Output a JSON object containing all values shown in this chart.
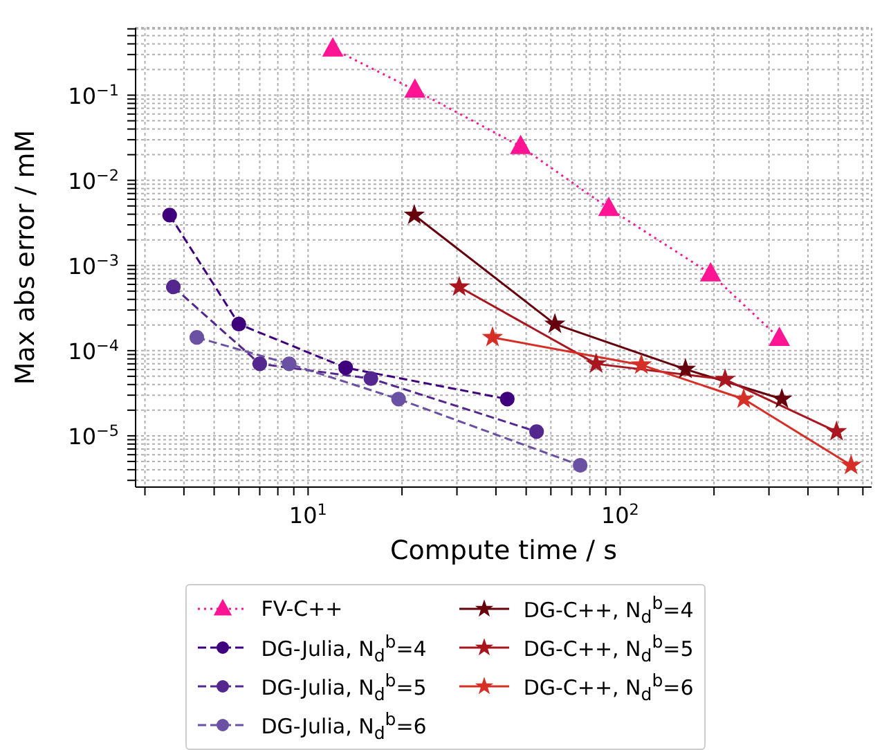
{
  "chart_data": {
    "type": "line",
    "xlabel": "Compute time / s",
    "ylabel": "Max abs error / mM",
    "log": "xy",
    "grid": true,
    "legend": "bottom",
    "xlim": [
      2.8,
      640
    ],
    "ylim": [
      2.5e-06,
      0.62
    ],
    "xticks": [
      {
        "value": 3,
        "label": null
      },
      {
        "value": 4,
        "label": null
      },
      {
        "value": 5,
        "label": null
      },
      {
        "value": 6,
        "label": null
      },
      {
        "value": 7,
        "label": null
      },
      {
        "value": 8,
        "label": null
      },
      {
        "value": 9,
        "label": null
      },
      {
        "value": 10,
        "label": "10$^{1}$"
      },
      {
        "value": 20,
        "label": null
      },
      {
        "value": 30,
        "label": null
      },
      {
        "value": 40,
        "label": null
      },
      {
        "value": 50,
        "label": null
      },
      {
        "value": 60,
        "label": null
      },
      {
        "value": 70,
        "label": null
      },
      {
        "value": 80,
        "label": null
      },
      {
        "value": 90,
        "label": null
      },
      {
        "value": 100,
        "label": "10$^{2}$"
      },
      {
        "value": 200,
        "label": null
      },
      {
        "value": 300,
        "label": null
      },
      {
        "value": 400,
        "label": null
      },
      {
        "value": 500,
        "label": null
      },
      {
        "value": 600,
        "label": null
      }
    ],
    "yticks": [
      {
        "value": 3e-06,
        "label": null
      },
      {
        "value": 4e-06,
        "label": null
      },
      {
        "value": 5e-06,
        "label": null
      },
      {
        "value": 6e-06,
        "label": null
      },
      {
        "value": 7e-06,
        "label": null
      },
      {
        "value": 8e-06,
        "label": null
      },
      {
        "value": 9e-06,
        "label": null
      },
      {
        "value": 1e-05,
        "label": "10$^{−5}$"
      },
      {
        "value": 2e-05,
        "label": null
      },
      {
        "value": 3e-05,
        "label": null
      },
      {
        "value": 4e-05,
        "label": null
      },
      {
        "value": 5e-05,
        "label": null
      },
      {
        "value": 6e-05,
        "label": null
      },
      {
        "value": 7e-05,
        "label": null
      },
      {
        "value": 8e-05,
        "label": null
      },
      {
        "value": 9e-05,
        "label": null
      },
      {
        "value": 0.0001,
        "label": "10$^{−4}$"
      },
      {
        "value": 0.0002,
        "label": null
      },
      {
        "value": 0.0003,
        "label": null
      },
      {
        "value": 0.0004,
        "label": null
      },
      {
        "value": 0.0005,
        "label": null
      },
      {
        "value": 0.0006,
        "label": null
      },
      {
        "value": 0.0007,
        "label": null
      },
      {
        "value": 0.0008,
        "label": null
      },
      {
        "value": 0.0009,
        "label": null
      },
      {
        "value": 0.001,
        "label": "10$^{−3}$"
      },
      {
        "value": 0.002,
        "label": null
      },
      {
        "value": 0.003,
        "label": null
      },
      {
        "value": 0.004,
        "label": null
      },
      {
        "value": 0.005,
        "label": null
      },
      {
        "value": 0.006,
        "label": null
      },
      {
        "value": 0.007,
        "label": null
      },
      {
        "value": 0.008,
        "label": null
      },
      {
        "value": 0.009,
        "label": null
      },
      {
        "value": 0.01,
        "label": "10$^{−2}$"
      },
      {
        "value": 0.02,
        "label": null
      },
      {
        "value": 0.03,
        "label": null
      },
      {
        "value": 0.04,
        "label": null
      },
      {
        "value": 0.05,
        "label": null
      },
      {
        "value": 0.06,
        "label": null
      },
      {
        "value": 0.07,
        "label": null
      },
      {
        "value": 0.08,
        "label": null
      },
      {
        "value": 0.09,
        "label": null
      },
      {
        "value": 0.1,
        "label": "10$^{−1}$"
      },
      {
        "value": 0.2,
        "label": null
      },
      {
        "value": 0.3,
        "label": null
      },
      {
        "value": 0.4,
        "label": null
      },
      {
        "value": 0.5,
        "label": null
      },
      {
        "value": 0.6,
        "label": null
      }
    ],
    "series": [
      {
        "name": "FV-C++",
        "color": "#ff1493",
        "marker": "triangle",
        "line_style": "dotted",
        "x": [
          12,
          22,
          48,
          92,
          195,
          324
        ],
        "values": [
          0.35,
          0.115,
          0.025,
          0.0047,
          0.0008,
          0.00014
        ]
      },
      {
        "name": "DG-Julia, N$_{d}$$^{b}$=4",
        "color": "#3f007d",
        "marker": "circle",
        "line_style": "dashed",
        "x": [
          3.6,
          6.0,
          13.2,
          43.5
        ],
        "values": [
          0.0039,
          0.000205,
          6.3e-05,
          2.7e-05
        ]
      },
      {
        "name": "DG-Julia, N$_{d}$$^{b}$=5",
        "color": "#54278f",
        "marker": "circle",
        "line_style": "dashed",
        "x": [
          3.7,
          7.0,
          15.9,
          54
        ],
        "values": [
          0.00056,
          7e-05,
          4.7e-05,
          1.12e-05
        ]
      },
      {
        "name": "DG-Julia, N$_{d}$$^{b}$=6",
        "color": "#6a51a3",
        "marker": "circle",
        "line_style": "dashed",
        "x": [
          4.4,
          8.7,
          19.5,
          74.5
        ],
        "values": [
          0.000143,
          7e-05,
          2.7e-05,
          4.5e-06
        ]
      },
      {
        "name": "DG-C++, N$_{d}$$^{b}$=4",
        "color": "#67000d",
        "marker": "star",
        "line_style": "solid",
        "x": [
          21.9,
          61.8,
          162,
          330
        ],
        "values": [
          0.0039,
          0.000205,
          6.05e-05,
          2.7e-05
        ]
      },
      {
        "name": "DG-C++, N$_{d}$$^{b}$=5",
        "color": "#a91620",
        "marker": "star",
        "line_style": "solid",
        "x": [
          30.5,
          83.8,
          217,
          494
        ],
        "values": [
          0.00056,
          7e-05,
          4.6e-05,
          1.12e-05
        ]
      },
      {
        "name": "DG-C++, N$_{d}$$^{b}$=6",
        "color": "#d62f27",
        "marker": "star",
        "line_style": "solid",
        "x": [
          39,
          117,
          249,
          550
        ],
        "values": [
          0.000143,
          6.8e-05,
          2.7e-05,
          4.5e-06
        ]
      }
    ]
  }
}
